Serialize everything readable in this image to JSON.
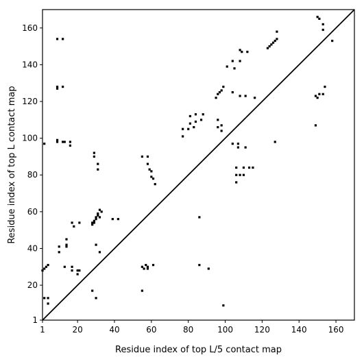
{
  "chart_data": {
    "type": "scatter",
    "xlabel": "Residue index of top L/5 contact map",
    "ylabel": "Residue index of top L contact map",
    "xlim": [
      1,
      170
    ],
    "ylim": [
      1,
      170
    ],
    "xticks": [
      1,
      20,
      40,
      60,
      80,
      100,
      120,
      140,
      160
    ],
    "yticks": [
      1,
      20,
      40,
      60,
      80,
      100,
      120,
      140,
      160
    ],
    "grid": false,
    "diagonal": true,
    "marker": "square",
    "marker_color": "#000000",
    "series": [
      {
        "points": [
          [
            1,
            28
          ],
          [
            2,
            29
          ],
          [
            3,
            30
          ],
          [
            4,
            31
          ],
          [
            2,
            97
          ],
          [
            2,
            13
          ],
          [
            4,
            10
          ],
          [
            4,
            13
          ],
          [
            9,
            154
          ],
          [
            12,
            154
          ],
          [
            9,
            128
          ],
          [
            9,
            127
          ],
          [
            12,
            128
          ],
          [
            9,
            99
          ],
          [
            9,
            98
          ],
          [
            12,
            98
          ],
          [
            13,
            98
          ],
          [
            16,
            98
          ],
          [
            16,
            96
          ],
          [
            10,
            41
          ],
          [
            10,
            38
          ],
          [
            14,
            45
          ],
          [
            14,
            42
          ],
          [
            14,
            41
          ],
          [
            13,
            30
          ],
          [
            17,
            30
          ],
          [
            17,
            28
          ],
          [
            17,
            54
          ],
          [
            18,
            52
          ],
          [
            21,
            54
          ],
          [
            20,
            28
          ],
          [
            21,
            28
          ],
          [
            20,
            26
          ],
          [
            28,
            53
          ],
          [
            28,
            54
          ],
          [
            29,
            55
          ],
          [
            29,
            54
          ],
          [
            30,
            57
          ],
          [
            30,
            56
          ],
          [
            31,
            58
          ],
          [
            31,
            59
          ],
          [
            32,
            57
          ],
          [
            32,
            61
          ],
          [
            33,
            60
          ],
          [
            29,
            92
          ],
          [
            29,
            90
          ],
          [
            31,
            86
          ],
          [
            31,
            83
          ],
          [
            30,
            42
          ],
          [
            32,
            38
          ],
          [
            28,
            17
          ],
          [
            30,
            13
          ],
          [
            39,
            56
          ],
          [
            42,
            56
          ],
          [
            55,
            17
          ],
          [
            55,
            90
          ],
          [
            58,
            90
          ],
          [
            58,
            86
          ],
          [
            59,
            83
          ],
          [
            60,
            82
          ],
          [
            60,
            79
          ],
          [
            61,
            78
          ],
          [
            62,
            75
          ],
          [
            55,
            30
          ],
          [
            56,
            29
          ],
          [
            57,
            31
          ],
          [
            58,
            29
          ],
          [
            58,
            30
          ],
          [
            61,
            31
          ],
          [
            77,
            101
          ],
          [
            77,
            105
          ],
          [
            80,
            105
          ],
          [
            81,
            112
          ],
          [
            81,
            108
          ],
          [
            83,
            106
          ],
          [
            84,
            113
          ],
          [
            84,
            109
          ],
          [
            87,
            110
          ],
          [
            88,
            113
          ],
          [
            86,
            57
          ],
          [
            86,
            31
          ],
          [
            91,
            29
          ],
          [
            95,
            122
          ],
          [
            96,
            124
          ],
          [
            97,
            125
          ],
          [
            98,
            126
          ],
          [
            99,
            128
          ],
          [
            96,
            110
          ],
          [
            96,
            106
          ],
          [
            98,
            107
          ],
          [
            98,
            104
          ],
          [
            101,
            139
          ],
          [
            104,
            142
          ],
          [
            105,
            138
          ],
          [
            108,
            148
          ],
          [
            109,
            147
          ],
          [
            108,
            142
          ],
          [
            112,
            147
          ],
          [
            108,
            123
          ],
          [
            111,
            123
          ],
          [
            104,
            125
          ],
          [
            116,
            122
          ],
          [
            104,
            97
          ],
          [
            107,
            97
          ],
          [
            107,
            95
          ],
          [
            111,
            95
          ],
          [
            106,
            84
          ],
          [
            106,
            80
          ],
          [
            108,
            80
          ],
          [
            110,
            80
          ],
          [
            110,
            84
          ],
          [
            113,
            84
          ],
          [
            115,
            84
          ],
          [
            106,
            76
          ],
          [
            99,
            9
          ],
          [
            123,
            149
          ],
          [
            124,
            150
          ],
          [
            125,
            151
          ],
          [
            126,
            152
          ],
          [
            127,
            153
          ],
          [
            128,
            154
          ],
          [
            128,
            158
          ],
          [
            127,
            98
          ],
          [
            150,
            166
          ],
          [
            151,
            165
          ],
          [
            151,
            124
          ],
          [
            153,
            124
          ],
          [
            153,
            162
          ],
          [
            153,
            159
          ],
          [
            154,
            128
          ],
          [
            149,
            123
          ],
          [
            150,
            122
          ],
          [
            149,
            107
          ],
          [
            158,
            153
          ]
        ]
      }
    ]
  }
}
